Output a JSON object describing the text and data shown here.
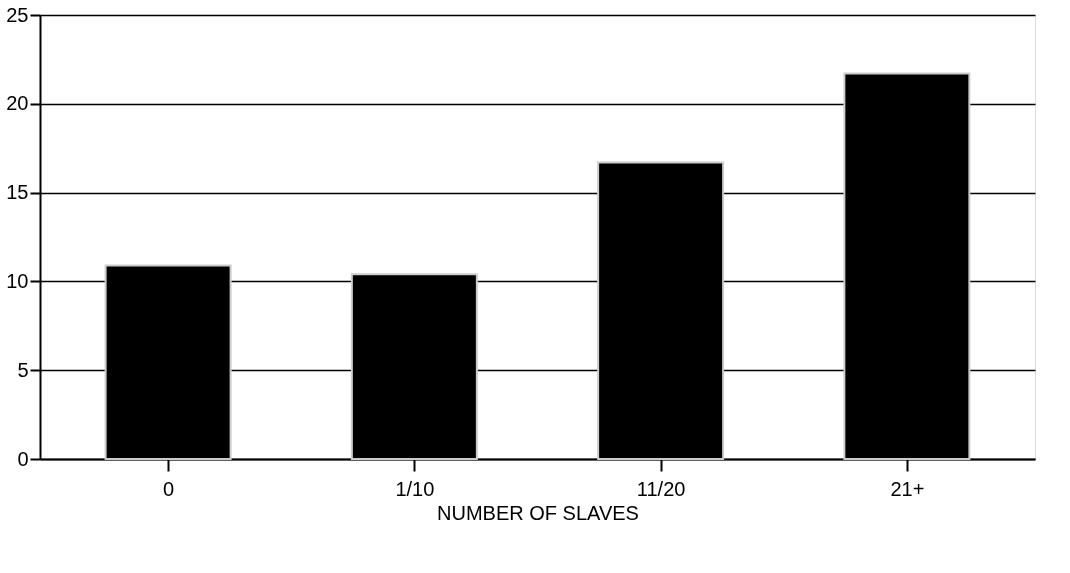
{
  "chart_data": {
    "type": "bar",
    "xlabel": "NUMBER OF SLAVES",
    "categories": [
      "0",
      "1/10",
      "11/20",
      "21+"
    ],
    "values": [
      10.9,
      10.4,
      16.7,
      21.7
    ],
    "color": "#000000",
    "ylim": [
      0,
      25
    ],
    "yticks": [
      0,
      5,
      10,
      15,
      20,
      25
    ],
    "grid": "y"
  }
}
